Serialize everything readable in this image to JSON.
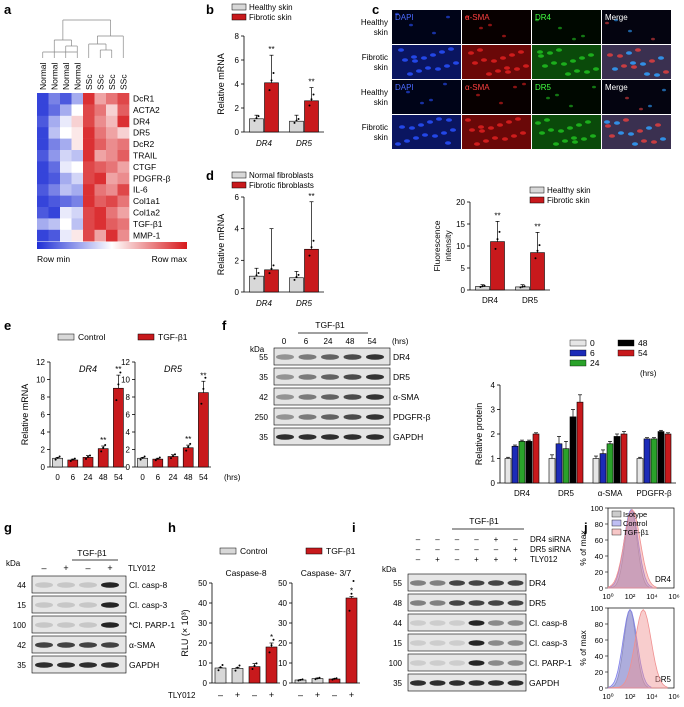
{
  "panel_letters": [
    "a",
    "b",
    "c",
    "d",
    "e",
    "f",
    "g",
    "h",
    "i",
    "j"
  ],
  "colors": {
    "healthy": "#d8d8d8",
    "fibrotic": "#c8191c",
    "wb_band": "#1a1a1a",
    "heat_min": "#1f2fd6",
    "heat_max": "#d7191c",
    "g0": "#e6e6e6",
    "g6": "#1c2bb8",
    "g24": "#2aa22a",
    "g48": "#000000",
    "g54": "#c8191c",
    "isotype": "#9a9a9a",
    "control_hist": "#8080e8",
    "tgf_hist": "#f09090"
  },
  "heatmap": {
    "columns": [
      "Normal",
      "Normal",
      "Normal",
      "Normal",
      "SSc",
      "SSc",
      "SSc",
      "SSc"
    ],
    "rows": [
      "DcR1",
      "ACTA2",
      "DR4",
      "DR5",
      "DcR2",
      "TRAIL",
      "CTGF",
      "PDGFR-β",
      "IL-6",
      "Col1a1",
      "Col1a2",
      "TGF-β1",
      "MMP-1"
    ],
    "legend_min": "Row min",
    "legend_max": "Row max",
    "values": [
      [
        0.05,
        0.2,
        0.1,
        0.3,
        0.95,
        0.7,
        0.8,
        0.9
      ],
      [
        0.05,
        0.15,
        0.3,
        0.5,
        0.9,
        0.8,
        0.6,
        0.85
      ],
      [
        0.1,
        0.3,
        0.45,
        0.6,
        0.9,
        0.75,
        0.65,
        0.95
      ],
      [
        0.05,
        0.35,
        0.5,
        0.55,
        0.95,
        0.8,
        0.7,
        0.6
      ],
      [
        0.05,
        0.2,
        0.3,
        0.55,
        0.95,
        0.85,
        0.75,
        0.8
      ],
      [
        0.1,
        0.25,
        0.4,
        0.35,
        0.95,
        0.7,
        0.75,
        0.85
      ],
      [
        0.05,
        0.15,
        0.45,
        0.5,
        0.9,
        0.85,
        0.8,
        0.7
      ],
      [
        0.05,
        0.1,
        0.3,
        0.4,
        0.9,
        0.95,
        0.7,
        0.75
      ],
      [
        0.1,
        0.2,
        0.35,
        0.3,
        0.95,
        0.8,
        0.75,
        0.9
      ],
      [
        0.05,
        0.1,
        0.15,
        0.2,
        0.95,
        0.85,
        0.9,
        0.8
      ],
      [
        0.1,
        0.05,
        0.45,
        0.4,
        0.9,
        0.95,
        0.8,
        0.7
      ],
      [
        0.3,
        0.35,
        0.5,
        0.35,
        0.9,
        0.95,
        0.85,
        0.8
      ],
      [
        0.05,
        0.1,
        0.45,
        0.55,
        0.9,
        0.7,
        0.95,
        0.75
      ]
    ]
  },
  "panel_b": {
    "legend": [
      "Healthy skin",
      "Fibrotic skin"
    ],
    "ylabel": "Relative mRNA",
    "ylim": [
      0,
      8
    ],
    "yticks": [
      0,
      2,
      4,
      6,
      8
    ],
    "categories": [
      "DR4",
      "DR5"
    ],
    "series": [
      [
        1.1,
        0.9
      ],
      [
        4.1,
        2.6
      ]
    ],
    "errors": [
      [
        0.3,
        0.5
      ],
      [
        2.3,
        1.1
      ]
    ],
    "sig": [
      "**",
      "**"
    ]
  },
  "panel_d": {
    "legend": [
      "Normal fibroblasts",
      "Fibrotic fibroblasts"
    ],
    "ylabel": "Relative mRNA",
    "ylim": [
      0,
      6
    ],
    "yticks": [
      0,
      2,
      4,
      6
    ],
    "categories": [
      "DR4",
      "DR5"
    ],
    "series": [
      [
        1.0,
        0.9
      ],
      [
        1.4,
        2.7
      ]
    ],
    "errors": [
      [
        0.5,
        0.4
      ],
      [
        2.6,
        3.0
      ]
    ],
    "sig": [
      "",
      "**"
    ]
  },
  "panel_c": {
    "row_labels": [
      [
        "Healthy",
        "skin"
      ],
      [
        "Fibrotic",
        "skin"
      ],
      [
        "Healthy",
        "skin"
      ],
      [
        "Fibrotic",
        "skin"
      ]
    ],
    "channels_top": [
      "DAPI",
      "α-SMA",
      "DR4",
      "Merge"
    ],
    "channels_bottom": [
      "DAPI",
      "α-SMA",
      "DR5",
      "Merge"
    ],
    "chart": {
      "legend": [
        "Healthy skin",
        "Fibrotic skin"
      ],
      "ylabel": "Fluorescence intensity",
      "ylim": [
        0,
        20
      ],
      "yticks": [
        0,
        5,
        10,
        15,
        20
      ],
      "categories": [
        "DR4",
        "DR5"
      ],
      "series": [
        [
          0.8,
          0.7
        ],
        [
          11.0,
          8.5
        ]
      ],
      "errors": [
        [
          0.4,
          0.5
        ],
        [
          4.6,
          4.6
        ]
      ],
      "sig": [
        "**",
        "**"
      ]
    }
  },
  "panel_e": {
    "legend": [
      "Control",
      "TGF-β1"
    ],
    "ylabel": "Relative mRNA",
    "ylim": [
      0,
      12
    ],
    "yticks": [
      0,
      2,
      4,
      6,
      8,
      10,
      12
    ],
    "x": [
      "0",
      "6",
      "24",
      "48",
      "54"
    ],
    "xunit": "(hrs)",
    "subplots": [
      {
        "title": "DR4",
        "values": [
          1.0,
          0.8,
          1.1,
          2.1,
          9.0
        ],
        "errors": [
          0.1,
          0.1,
          0.2,
          0.3,
          1.5
        ],
        "sig": [
          "",
          "",
          "",
          "**",
          "**"
        ]
      },
      {
        "title": "DR5",
        "values": [
          1.0,
          0.9,
          1.2,
          2.2,
          8.5
        ],
        "errors": [
          0.1,
          0.1,
          0.2,
          0.3,
          1.3
        ],
        "sig": [
          "",
          "",
          "",
          "**",
          "**"
        ]
      }
    ]
  },
  "panel_f": {
    "treatment": "TGF-β1",
    "kda_label": "kDa",
    "timepoints": [
      "0",
      "6",
      "24",
      "48",
      "54"
    ],
    "time_unit": "(hrs)",
    "lanes": [
      {
        "kda": "55",
        "protein": "DR4"
      },
      {
        "kda": "35",
        "protein": "DR5"
      },
      {
        "kda": "42",
        "protein": "α-SMA"
      },
      {
        "kda": "250",
        "protein": "PDGFR-β"
      },
      {
        "kda": "35",
        "protein": "GAPDH"
      }
    ],
    "chart": {
      "legend": [
        "0",
        "6",
        "24",
        "48",
        "54"
      ],
      "legend_unit": "(hrs)",
      "ylabel": "Relative protein",
      "ylim": [
        0,
        4
      ],
      "yticks": [
        0,
        1,
        2,
        3,
        4
      ],
      "categories": [
        "DR4",
        "DR5",
        "α-SMA",
        "PDGFR-β"
      ],
      "series": [
        [
          1.0,
          1.0,
          1.0,
          1.0
        ],
        [
          1.5,
          1.6,
          1.2,
          1.8
        ],
        [
          1.7,
          1.4,
          1.6,
          1.8
        ],
        [
          1.7,
          2.7,
          1.9,
          2.1
        ],
        [
          2.0,
          3.3,
          2.0,
          2.0
        ]
      ],
      "errors": [
        [
          0.05,
          0.15,
          0.1,
          0.05
        ],
        [
          0.05,
          0.3,
          0.15,
          0.05
        ],
        [
          0.05,
          0.3,
          0.1,
          0.05
        ],
        [
          0.05,
          0.3,
          0.1,
          0.05
        ],
        [
          0.05,
          0.3,
          0.1,
          0.05
        ]
      ]
    }
  },
  "panel_g": {
    "treatment": "TGF-β1",
    "kda_label": "kDa",
    "row_label": "TLY012",
    "signs": [
      "–",
      "+",
      "–",
      "+"
    ],
    "lanes": [
      {
        "kda": "44",
        "protein": "Cl. casp-8"
      },
      {
        "kda": "15",
        "protein": "Cl. casp-3"
      },
      {
        "kda": "100",
        "protein": "*Cl. PARP-1"
      },
      {
        "kda": "42",
        "protein": "α-SMA"
      },
      {
        "kda": "35",
        "protein": "GAPDH"
      }
    ]
  },
  "panel_h": {
    "legend": [
      "Control",
      "TGF-β1"
    ],
    "ylabel": "RLU (× 10³)",
    "ylim": [
      0,
      50
    ],
    "yticks": [
      0,
      10,
      20,
      30,
      40,
      50
    ],
    "row_label": "TLY012",
    "signs": [
      "–",
      "+",
      "–",
      "+"
    ],
    "subplots": [
      {
        "title": "Caspase-8",
        "values": [
          7.5,
          7.3,
          8.2,
          18.0
        ],
        "errors": [
          0.2,
          0.5,
          1.5,
          2.0
        ],
        "sig": [
          "",
          "",
          "",
          "*"
        ]
      },
      {
        "title": "Caspase- 3/7",
        "values": [
          1.5,
          2.2,
          2.0,
          42.5
        ],
        "errors": [
          0.2,
          0.3,
          0.2,
          0.8
        ],
        "sig": [
          "",
          "",
          "",
          "*"
        ]
      }
    ]
  },
  "panel_i": {
    "treatment": "TGF-β1",
    "kda_label": "kDa",
    "rows": [
      {
        "label": "DR4 siRNA",
        "signs": [
          "–",
          "–",
          "–",
          "–",
          "+",
          "–"
        ]
      },
      {
        "label": "DR5 siRNA",
        "signs": [
          "–",
          "–",
          "–",
          "–",
          "–",
          "+"
        ]
      },
      {
        "label": "TLY012",
        "signs": [
          "–",
          "+",
          "–",
          "+",
          "+",
          "+"
        ]
      }
    ],
    "lanes": [
      {
        "kda": "55",
        "protein": "DR4"
      },
      {
        "kda": "48",
        "protein": "DR5"
      },
      {
        "kda": "44",
        "protein": "Cl. casp-8"
      },
      {
        "kda": "15",
        "protein": "Cl. casp-3"
      },
      {
        "kda": "100",
        "protein": "Cl. PARP-1"
      },
      {
        "kda": "35",
        "protein": "GAPDH"
      }
    ]
  },
  "panel_j": {
    "legend": [
      "Isotype",
      "Control",
      "TGF-β1"
    ],
    "ylabel": "% of max",
    "yticks": [
      "0",
      "20",
      "40",
      "60",
      "80",
      "100"
    ],
    "xticks": [
      "10⁰",
      "10²",
      "10⁴",
      "10⁶"
    ],
    "xlim_log": [
      0,
      6
    ],
    "subplots": [
      {
        "label": "DR4",
        "peaks_log10": [
          2.1,
          2.1,
          2.2
        ]
      },
      {
        "label": "DR5",
        "peaks_log10": [
          2.0,
          2.0,
          3.2
        ]
      }
    ]
  }
}
